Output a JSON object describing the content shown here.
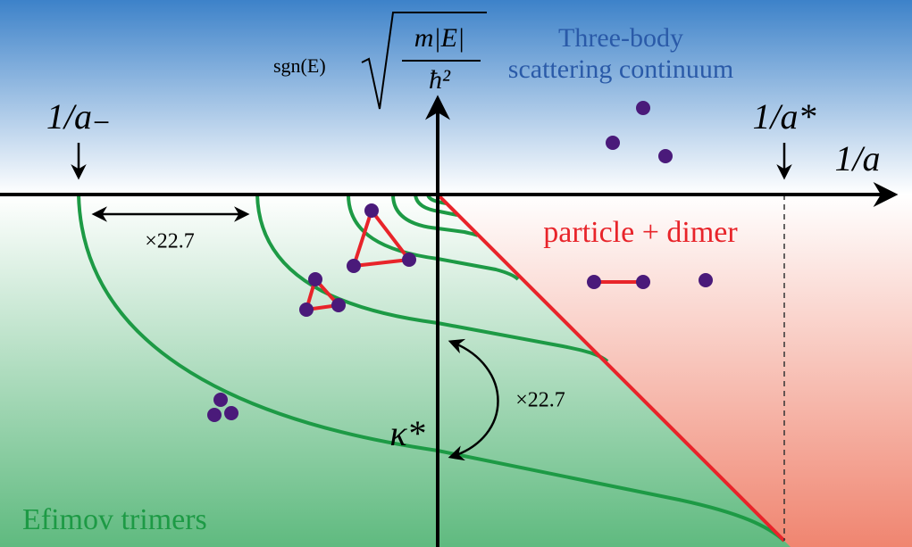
{
  "axis_label": {
    "sign": "sgn(E)",
    "numerator": "m|E|",
    "denominator": "ħ²"
  },
  "x_axis_label": "1/a",
  "markers": {
    "left": "1/a₋",
    "right": "1/a*"
  },
  "regions": {
    "continuum_line1": "Three-body",
    "continuum_line2": "scattering continuum",
    "dimer": "particle + dimer",
    "trimers": "Efimov trimers"
  },
  "scalings": {
    "horizontal": "×22.7",
    "vertical": "×22.7",
    "kappa": "κ*"
  }
}
